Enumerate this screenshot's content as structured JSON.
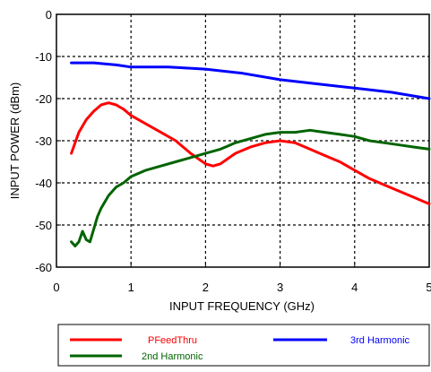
{
  "chart_data": {
    "type": "line",
    "title": "",
    "xlabel": "INPUT FREQUENCY (GHz)",
    "ylabel": "INPUT POWER (dBm)",
    "xlim": [
      0,
      5
    ],
    "ylim": [
      -60,
      0
    ],
    "xticks": [
      "0",
      "1",
      "2",
      "3",
      "4",
      "5"
    ],
    "yticks": [
      "0",
      "-10",
      "-20",
      "-30",
      "-40",
      "-50",
      "-60"
    ],
    "grid": "dotted",
    "legend_placement": "below",
    "series": [
      {
        "name": "PFeedThru",
        "color": "#ff0000",
        "x": [
          0.2,
          0.3,
          0.4,
          0.5,
          0.6,
          0.7,
          0.8,
          0.9,
          1.0,
          1.2,
          1.4,
          1.6,
          1.8,
          2.0,
          2.1,
          2.2,
          2.4,
          2.6,
          2.8,
          3.0,
          3.2,
          3.4,
          3.6,
          3.8,
          4.0,
          4.2,
          4.4,
          4.6,
          4.8,
          5.0
        ],
        "values": [
          -33,
          -28,
          -25,
          -23,
          -21.5,
          -21,
          -21.5,
          -22.5,
          -24,
          -26,
          -28,
          -30,
          -33,
          -35.5,
          -36,
          -35.5,
          -33,
          -31.5,
          -30.5,
          -30,
          -30.5,
          -32,
          -33.5,
          -35,
          -37,
          -39,
          -40.5,
          -42,
          -43.5,
          -45
        ]
      },
      {
        "name": "3rd Harmonic",
        "color": "#0000ff",
        "x": [
          0.2,
          0.5,
          0.8,
          1.0,
          1.5,
          2.0,
          2.5,
          3.0,
          3.5,
          4.0,
          4.5,
          5.0
        ],
        "values": [
          -11.5,
          -11.5,
          -12,
          -12.5,
          -12.5,
          -13,
          -14,
          -15.5,
          -16.5,
          -17.5,
          -18.5,
          -20
        ]
      },
      {
        "name": "2nd Harmonic",
        "color": "#006400",
        "x": [
          0.2,
          0.25,
          0.3,
          0.35,
          0.4,
          0.45,
          0.5,
          0.55,
          0.6,
          0.7,
          0.8,
          0.9,
          1.0,
          1.2,
          1.4,
          1.6,
          1.8,
          2.0,
          2.2,
          2.4,
          2.6,
          2.8,
          3.0,
          3.2,
          3.4,
          3.6,
          3.8,
          4.0,
          4.2,
          4.4,
          4.6,
          4.8,
          5.0
        ],
        "values": [
          -54,
          -55,
          -54,
          -51.5,
          -53.5,
          -54,
          -51,
          -48,
          -46,
          -43,
          -41,
          -40,
          -38.5,
          -37,
          -36,
          -35,
          -34,
          -33,
          -32,
          -30.5,
          -29.5,
          -28.5,
          -28,
          -28,
          -27.5,
          -28,
          -28.5,
          -29,
          -30,
          -30.5,
          -31,
          -31.5,
          -32
        ]
      }
    ]
  }
}
